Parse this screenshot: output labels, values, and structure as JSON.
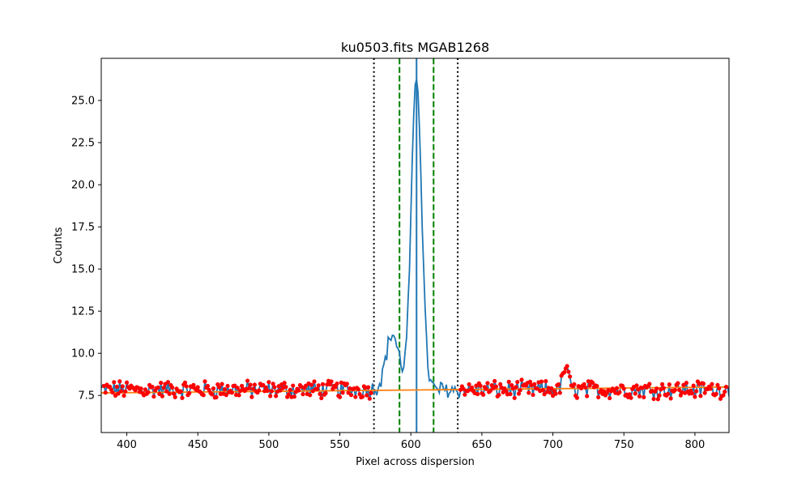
{
  "chart_data": {
    "type": "line",
    "title": "ku0503.fits MGAB1268",
    "xlabel": "Pixel across dispersion",
    "ylabel": "Counts",
    "xlim": [
      382,
      824
    ],
    "ylim": [
      5.3,
      27.5
    ],
    "x_ticks": [
      400,
      450,
      500,
      550,
      600,
      650,
      700,
      750,
      800
    ],
    "y_ticks": [
      7.5,
      10.0,
      12.5,
      15.0,
      17.5,
      20.0,
      22.5,
      25.0
    ],
    "grid": false,
    "colors": {
      "profile": "#1f77b4",
      "background_fit": "#ff7f0e",
      "background_points": "#ff0000",
      "aperture_lines": "#008000",
      "background_limit_lines": "#000000",
      "center_line": "#1f77b4"
    },
    "profile_shape": {
      "x_start": 382,
      "x_end": 824,
      "baseline": 7.85,
      "noise_amplitude": 0.75,
      "peaks": [
        {
          "center": 604,
          "amplitude": 18.6,
          "sigma": 3.6
        },
        {
          "center": 587,
          "amplitude": 3.3,
          "sigma": 4.5
        },
        {
          "center": 709,
          "amplitude": 1.4,
          "sigma": 1.8
        }
      ]
    },
    "background_fit": {
      "x": [
        382,
        824
      ],
      "y": [
        7.65,
        8.0
      ]
    },
    "background_regions": [
      [
        384,
        572
      ],
      [
        635,
        822
      ]
    ],
    "vertical_lines": [
      {
        "x": 574,
        "style": "dotted",
        "role": "background-limit"
      },
      {
        "x": 592,
        "style": "dashed",
        "role": "aperture-limit"
      },
      {
        "x": 604,
        "style": "solid",
        "role": "trace-center"
      },
      {
        "x": 616,
        "style": "dashed",
        "role": "aperture-limit"
      },
      {
        "x": 633,
        "style": "dotted",
        "role": "background-limit"
      }
    ]
  }
}
